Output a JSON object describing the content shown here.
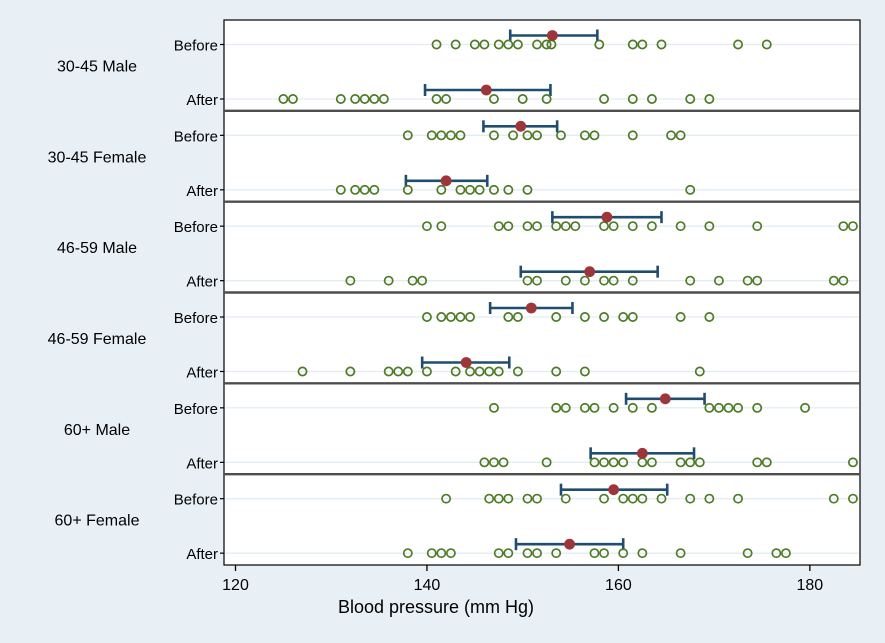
{
  "chart_data": {
    "type": "scatter",
    "title": "",
    "xlabel": "Blood pressure (mm Hg)",
    "ylabel": "",
    "x_ticks": [
      120,
      140,
      160,
      180
    ],
    "x_range": [
      118.8,
      185.5
    ],
    "grid": "horizontal-row-lines",
    "legend_position": "none",
    "row_labels": [
      "Before",
      "After"
    ],
    "groups": [
      {
        "label": "30-45 Male",
        "before": {
          "points": [
            141,
            143,
            145,
            146,
            147.5,
            148.5,
            149.5,
            151.5,
            152.5,
            153,
            158,
            161.5,
            162.5,
            164.5,
            172.5,
            175.5
          ],
          "mean": 153.1,
          "ci_low": 148.7,
          "ci_high": 157.8
        },
        "after": {
          "points": [
            125,
            126,
            131,
            132.5,
            133.5,
            134.5,
            135.5,
            141,
            142,
            147,
            150,
            152.5,
            158.5,
            161.5,
            163.5,
            167.5,
            169.5
          ],
          "mean": 146.2,
          "ci_low": 139.8,
          "ci_high": 152.9
        }
      },
      {
        "label": "30-45 Female",
        "before": {
          "points": [
            138,
            140.5,
            141.5,
            142.5,
            143.5,
            147,
            149,
            150.5,
            151.5,
            154,
            156.5,
            157.5,
            161.5,
            165.5,
            166.5
          ],
          "mean": 149.8,
          "ci_low": 145.9,
          "ci_high": 153.6
        },
        "after": {
          "points": [
            131,
            132.5,
            133.5,
            134.5,
            138,
            141.5,
            143.5,
            144.5,
            145.5,
            147,
            148.5,
            150.5,
            167.5
          ],
          "mean": 142.0,
          "ci_low": 137.8,
          "ci_high": 146.3
        }
      },
      {
        "label": "46-59 Male",
        "before": {
          "points": [
            140,
            141.5,
            147.5,
            148.5,
            150.5,
            151.5,
            153.5,
            154.5,
            155.5,
            158.5,
            159.5,
            161.5,
            163.5,
            166.5,
            169.5,
            174.5,
            183.5,
            184.5
          ],
          "mean": 158.8,
          "ci_low": 153.1,
          "ci_high": 164.5
        },
        "after": {
          "points": [
            132,
            136,
            138.5,
            139.5,
            150.5,
            151.5,
            154.5,
            156.5,
            158.5,
            159.5,
            161.5,
            167.5,
            170.5,
            173.5,
            174.5,
            182.5,
            183.5
          ],
          "mean": 157.0,
          "ci_low": 149.8,
          "ci_high": 164.1
        }
      },
      {
        "label": "46-59 Female",
        "before": {
          "points": [
            140,
            141.5,
            142.5,
            143.5,
            144.5,
            148.5,
            149.5,
            153.5,
            156.5,
            158.5,
            160.5,
            161.5,
            166.5,
            169.5
          ],
          "mean": 150.9,
          "ci_low": 146.6,
          "ci_high": 155.2
        },
        "after": {
          "points": [
            127,
            132,
            136,
            137,
            138,
            140,
            143,
            144.5,
            145.5,
            146.5,
            147.5,
            149.5,
            153.5,
            156.5,
            168.5
          ],
          "mean": 144.1,
          "ci_low": 139.5,
          "ci_high": 148.6
        }
      },
      {
        "label": "60+ Male",
        "before": {
          "points": [
            147,
            153.5,
            154.5,
            156.5,
            157.5,
            159.5,
            161.5,
            163.5,
            169.5,
            170.5,
            171.5,
            172.5,
            174.5,
            179.5
          ],
          "mean": 164.9,
          "ci_low": 160.8,
          "ci_high": 169.0
        },
        "after": {
          "points": [
            146,
            147,
            148,
            152.5,
            157.5,
            158.5,
            159.5,
            160.5,
            162.5,
            163.5,
            166.5,
            167.5,
            168.5,
            174.5,
            175.5,
            184.5
          ],
          "mean": 162.5,
          "ci_low": 157.1,
          "ci_high": 167.9
        }
      },
      {
        "label": "60+ Female",
        "before": {
          "points": [
            142,
            146.5,
            147.5,
            148.5,
            150.5,
            151.5,
            154.5,
            158.5,
            160.5,
            161.5,
            162.5,
            164.5,
            167.5,
            169.5,
            172.5,
            182.5,
            184.5
          ],
          "mean": 159.5,
          "ci_low": 154.0,
          "ci_high": 165.1
        },
        "after": {
          "points": [
            138,
            140.5,
            141.5,
            142.5,
            147.5,
            148.5,
            150.5,
            151.5,
            153.5,
            157.5,
            158.5,
            160.5,
            162.5,
            166.5,
            173.5,
            176.5,
            177.5
          ],
          "mean": 154.9,
          "ci_low": 149.3,
          "ci_high": 160.5
        }
      }
    ],
    "colors": {
      "page_bg": "#e8f0f6",
      "plot_bg": "#ffffff",
      "gridline": "#e2ecf4",
      "separator": "#4d4d4d",
      "border": "#000000",
      "point_stroke": "#4f7b25",
      "mean_fill": "#9c363a",
      "ci_line": "#1f4d72",
      "text": "#000000"
    }
  }
}
